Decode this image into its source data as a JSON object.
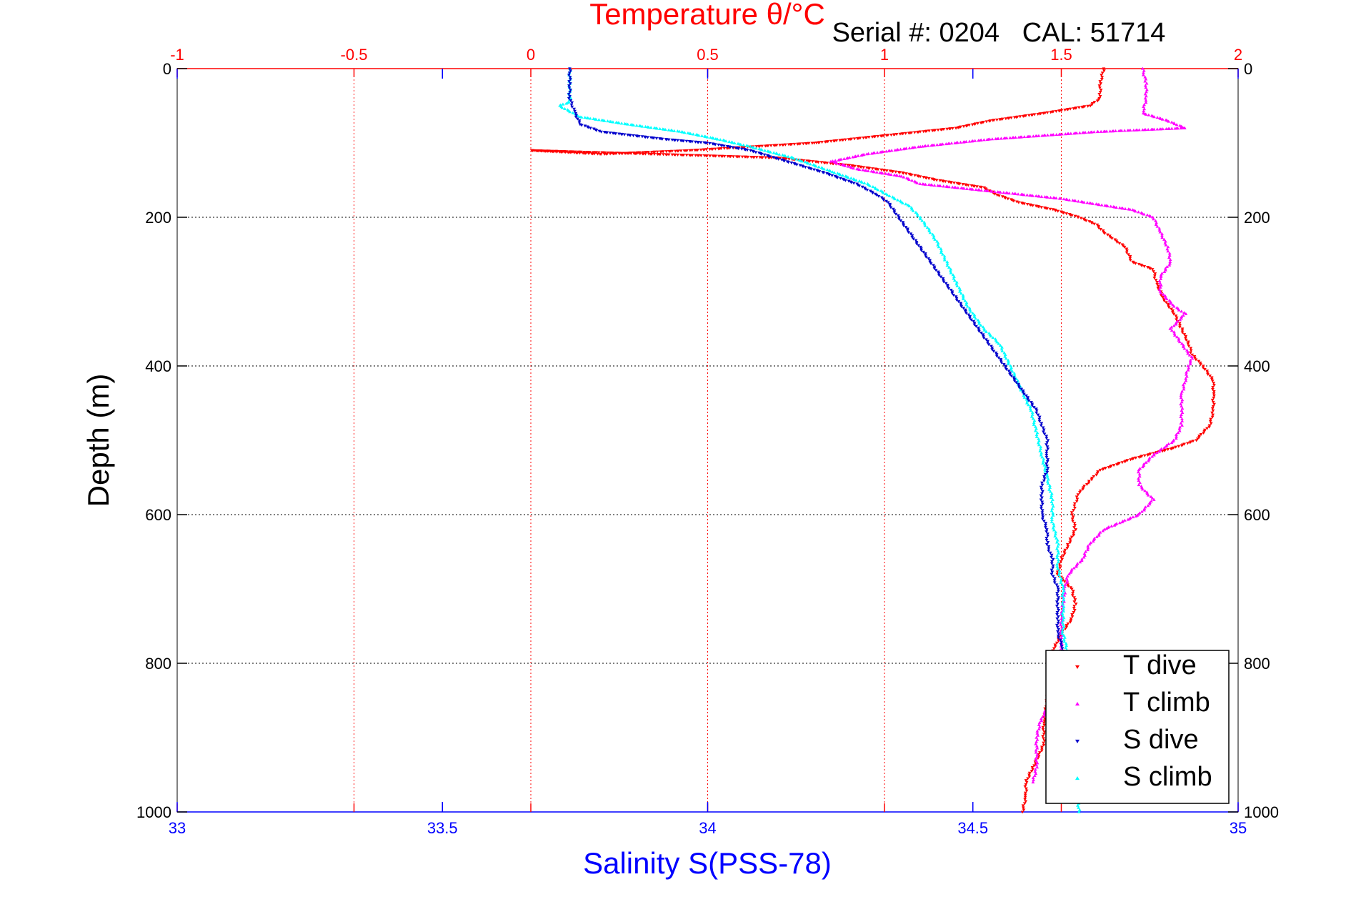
{
  "chart_data": {
    "type": "scatter",
    "title": "Temperature θ/°C",
    "subtitle": "Serial #: 0204   CAL: 51714",
    "top_axis": {
      "label": "Temperature θ/°C",
      "range": [
        -1,
        2
      ],
      "ticks": [
        "-1",
        "-0.5",
        "0",
        "0.5",
        "1",
        "1.5",
        "2"
      ],
      "color": "#ff0000"
    },
    "bottom_axis": {
      "label": "Salinity S(PSS-78)",
      "range": [
        33,
        35
      ],
      "ticks": [
        "33",
        "33.5",
        "34",
        "34.5",
        "35"
      ],
      "color": "#0000ff"
    },
    "y_axis": {
      "label": "Depth (m)",
      "range": [
        0,
        1000
      ],
      "reversed": true,
      "ticks": [
        "0",
        "200",
        "400",
        "600",
        "800",
        "1000"
      ]
    },
    "grid": true,
    "legend": {
      "position": "bottom-right",
      "entries": [
        "T dive",
        "T climb",
        "S dive",
        "S climb"
      ]
    },
    "series": [
      {
        "name": "T dive",
        "color": "#ff0000",
        "marker": "triangle-down",
        "axis": "temperature",
        "points": [
          [
            1.62,
            0
          ],
          [
            1.61,
            20
          ],
          [
            1.61,
            40
          ],
          [
            1.58,
            50
          ],
          [
            1.45,
            60
          ],
          [
            1.3,
            70
          ],
          [
            1.2,
            80
          ],
          [
            1.0,
            90
          ],
          [
            0.8,
            100
          ],
          [
            0.45,
            110
          ],
          [
            0.2,
            115
          ],
          [
            0.0,
            110
          ],
          [
            0.7,
            120
          ],
          [
            0.9,
            130
          ],
          [
            1.05,
            140
          ],
          [
            1.15,
            150
          ],
          [
            1.28,
            160
          ],
          [
            1.32,
            170
          ],
          [
            1.38,
            180
          ],
          [
            1.48,
            190
          ],
          [
            1.55,
            200
          ],
          [
            1.6,
            210
          ],
          [
            1.62,
            220
          ],
          [
            1.68,
            240
          ],
          [
            1.7,
            260
          ],
          [
            1.76,
            270
          ],
          [
            1.77,
            290
          ],
          [
            1.79,
            310
          ],
          [
            1.82,
            330
          ],
          [
            1.84,
            350
          ],
          [
            1.86,
            370
          ],
          [
            1.87,
            385
          ],
          [
            1.9,
            400
          ],
          [
            1.93,
            420
          ],
          [
            1.93,
            440
          ],
          [
            1.93,
            460
          ],
          [
            1.92,
            480
          ],
          [
            1.88,
            500
          ],
          [
            1.82,
            510
          ],
          [
            1.7,
            525
          ],
          [
            1.61,
            540
          ],
          [
            1.58,
            555
          ],
          [
            1.55,
            570
          ],
          [
            1.54,
            585
          ],
          [
            1.53,
            600
          ],
          [
            1.54,
            620
          ],
          [
            1.52,
            640
          ],
          [
            1.5,
            660
          ],
          [
            1.49,
            680
          ],
          [
            1.53,
            700
          ],
          [
            1.54,
            720
          ],
          [
            1.53,
            740
          ],
          [
            1.5,
            760
          ],
          [
            1.48,
            780
          ],
          [
            1.47,
            800
          ],
          [
            1.47,
            820
          ],
          [
            1.46,
            850
          ],
          [
            1.45,
            880
          ],
          [
            1.45,
            910
          ],
          [
            1.42,
            940
          ],
          [
            1.4,
            960
          ],
          [
            1.4,
            980
          ],
          [
            1.39,
            1000
          ]
        ]
      },
      {
        "name": "T climb",
        "color": "#ff00ff",
        "marker": "triangle-up",
        "axis": "temperature",
        "points": [
          [
            1.73,
            0
          ],
          [
            1.74,
            20
          ],
          [
            1.74,
            40
          ],
          [
            1.73,
            60
          ],
          [
            1.8,
            70
          ],
          [
            1.85,
            80
          ],
          [
            1.6,
            85
          ],
          [
            1.3,
            95
          ],
          [
            1.1,
            105
          ],
          [
            0.95,
            115
          ],
          [
            0.85,
            125
          ],
          [
            0.92,
            135
          ],
          [
            1.05,
            145
          ],
          [
            1.1,
            155
          ],
          [
            1.3,
            165
          ],
          [
            1.5,
            175
          ],
          [
            1.7,
            190
          ],
          [
            1.76,
            200
          ],
          [
            1.78,
            220
          ],
          [
            1.8,
            240
          ],
          [
            1.81,
            260
          ],
          [
            1.78,
            280
          ],
          [
            1.78,
            300
          ],
          [
            1.82,
            320
          ],
          [
            1.85,
            330
          ],
          [
            1.81,
            350
          ],
          [
            1.84,
            370
          ],
          [
            1.87,
            390
          ],
          [
            1.86,
            400
          ],
          [
            1.85,
            420
          ],
          [
            1.84,
            440
          ],
          [
            1.84,
            460
          ],
          [
            1.84,
            480
          ],
          [
            1.82,
            500
          ],
          [
            1.76,
            520
          ],
          [
            1.72,
            540
          ],
          [
            1.72,
            560
          ],
          [
            1.76,
            580
          ],
          [
            1.72,
            600
          ],
          [
            1.62,
            620
          ],
          [
            1.58,
            640
          ],
          [
            1.56,
            660
          ],
          [
            1.52,
            680
          ],
          [
            1.51,
            700
          ],
          [
            1.5,
            740
          ],
          [
            1.5,
            780
          ],
          [
            1.48,
            820
          ],
          [
            1.46,
            860
          ],
          [
            1.44,
            880
          ],
          [
            1.43,
            900
          ],
          [
            1.43,
            940
          ],
          [
            1.42,
            960
          ]
        ]
      },
      {
        "name": "S dive",
        "color": "#0000cc",
        "marker": "triangle-down",
        "axis": "salinity",
        "points": [
          [
            33.74,
            0
          ],
          [
            33.74,
            20
          ],
          [
            33.74,
            40
          ],
          [
            33.75,
            60
          ],
          [
            33.76,
            75
          ],
          [
            33.8,
            85
          ],
          [
            33.92,
            95
          ],
          [
            34.0,
            100
          ],
          [
            34.08,
            110
          ],
          [
            34.15,
            125
          ],
          [
            34.22,
            140
          ],
          [
            34.28,
            155
          ],
          [
            34.32,
            170
          ],
          [
            34.34,
            180
          ],
          [
            34.36,
            200
          ],
          [
            34.38,
            220
          ],
          [
            34.4,
            240
          ],
          [
            34.42,
            260
          ],
          [
            34.44,
            280
          ],
          [
            34.46,
            300
          ],
          [
            34.48,
            320
          ],
          [
            34.5,
            340
          ],
          [
            34.52,
            360
          ],
          [
            34.54,
            380
          ],
          [
            34.56,
            400
          ],
          [
            34.58,
            420
          ],
          [
            34.6,
            440
          ],
          [
            34.62,
            460
          ],
          [
            34.63,
            480
          ],
          [
            34.64,
            500
          ],
          [
            34.64,
            520
          ],
          [
            34.64,
            540
          ],
          [
            34.63,
            560
          ],
          [
            34.63,
            580
          ],
          [
            34.63,
            600
          ],
          [
            34.64,
            620
          ],
          [
            34.64,
            640
          ],
          [
            34.65,
            660
          ],
          [
            34.65,
            680
          ],
          [
            34.66,
            700
          ],
          [
            34.66,
            720
          ],
          [
            34.66,
            740
          ],
          [
            34.66,
            760
          ],
          [
            34.67,
            780
          ],
          [
            34.67,
            790
          ]
        ]
      },
      {
        "name": "S climb",
        "color": "#00ffff",
        "marker": "triangle-up",
        "axis": "salinity",
        "points": [
          [
            33.74,
            0
          ],
          [
            33.74,
            20
          ],
          [
            33.74,
            45
          ],
          [
            33.72,
            50
          ],
          [
            33.76,
            65
          ],
          [
            33.85,
            75
          ],
          [
            33.95,
            85
          ],
          [
            34.02,
            95
          ],
          [
            34.08,
            105
          ],
          [
            34.16,
            120
          ],
          [
            34.24,
            140
          ],
          [
            34.3,
            155
          ],
          [
            34.34,
            170
          ],
          [
            34.38,
            185
          ],
          [
            34.4,
            200
          ],
          [
            34.43,
            230
          ],
          [
            34.45,
            260
          ],
          [
            34.47,
            290
          ],
          [
            34.49,
            320
          ],
          [
            34.52,
            350
          ],
          [
            34.55,
            370
          ],
          [
            34.57,
            400
          ],
          [
            34.59,
            430
          ],
          [
            34.61,
            460
          ],
          [
            34.62,
            490
          ],
          [
            34.63,
            520
          ],
          [
            34.64,
            550
          ],
          [
            34.65,
            580
          ],
          [
            34.65,
            610
          ],
          [
            34.66,
            640
          ],
          [
            34.66,
            670
          ],
          [
            34.67,
            700
          ],
          [
            34.67,
            730
          ],
          [
            34.67,
            760
          ],
          [
            34.68,
            790
          ],
          [
            34.68,
            800
          ],
          [
            34.7,
            1000
          ]
        ]
      }
    ]
  }
}
